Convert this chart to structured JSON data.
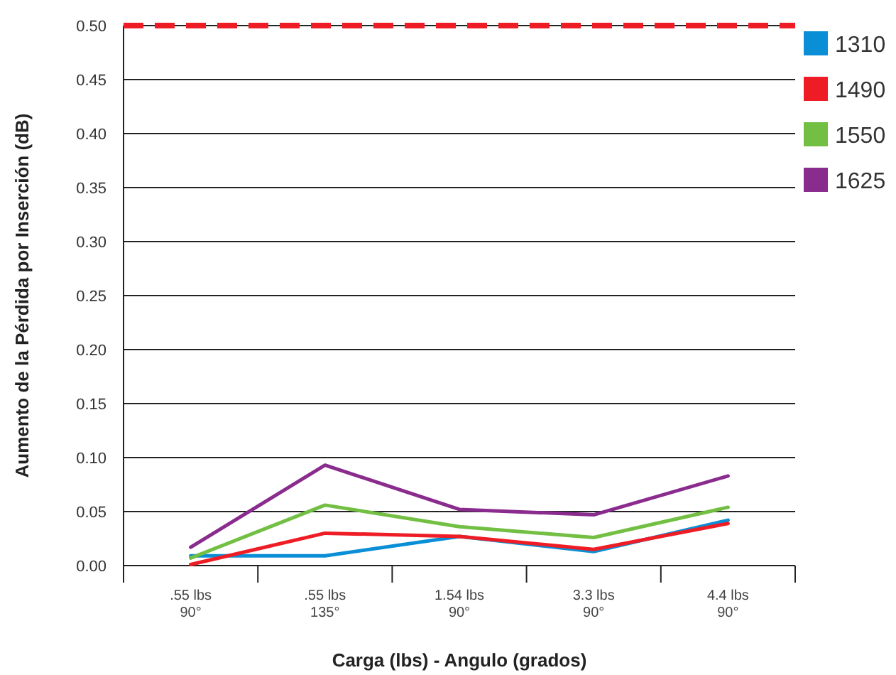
{
  "chart_data": {
    "type": "line",
    "xlabel": "Carga (lbs) - Angulo (grados)",
    "ylabel": "Aumento de la Pérdida por Inserción (dB)",
    "categories": [
      ".55 lbs\n90°",
      ".55 lbs\n135°",
      "1.54 lbs\n90°",
      "3.3 lbs\n90°",
      "4.4 lbs\n90°"
    ],
    "series": [
      {
        "name": "1310",
        "color": "#0a8fd6",
        "values": [
          0.009,
          0.009,
          0.027,
          0.013,
          0.042
        ]
      },
      {
        "name": "1490",
        "color": "#ee1c25",
        "values": [
          0.001,
          0.03,
          0.027,
          0.015,
          0.039
        ]
      },
      {
        "name": "1550",
        "color": "#72bf44",
        "values": [
          0.007,
          0.056,
          0.036,
          0.026,
          0.054
        ]
      },
      {
        "name": "1625",
        "color": "#8a2b8e",
        "values": [
          0.017,
          0.093,
          0.052,
          0.047,
          0.083
        ]
      }
    ],
    "ylim": [
      0,
      0.5
    ],
    "yticks": [
      {
        "value": 0,
        "label": "0.00"
      },
      {
        "value": 0.05,
        "label": "0.05"
      },
      {
        "value": 0.1,
        "label": "0.10"
      },
      {
        "value": 0.15,
        "label": "0.15"
      },
      {
        "value": 0.2,
        "label": "0.20"
      },
      {
        "value": 0.25,
        "label": "0.25"
      },
      {
        "value": 0.3,
        "label": "0.30"
      },
      {
        "value": 0.35,
        "label": "0.35"
      },
      {
        "value": 0.4,
        "label": "0.40"
      },
      {
        "value": 0.45,
        "label": "0.45"
      },
      {
        "value": 0.5,
        "label": "0.50"
      }
    ],
    "ref_lines": [
      {
        "axis": "y",
        "value": 0.5,
        "color": "#ee1c25",
        "line_style": "dashed"
      }
    ],
    "grid": "y",
    "legend": "top right",
    "marker": "none",
    "line_style": "solid"
  }
}
